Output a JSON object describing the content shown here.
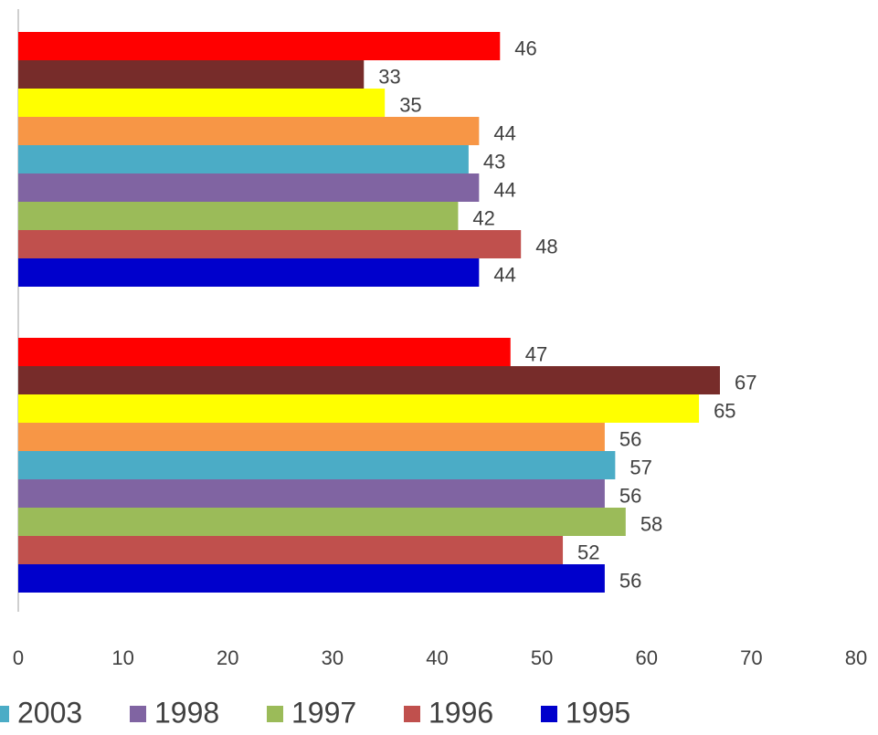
{
  "chart_data": {
    "type": "hbar",
    "categories": [
      null,
      null
    ],
    "series": [
      {
        "color": "#ff0000",
        "values": [
          46,
          47
        ]
      },
      {
        "color": "#772c2a",
        "values": [
          33,
          67
        ]
      },
      {
        "color": "#ffff00",
        "values": [
          35,
          65
        ]
      },
      {
        "color": "#f79646",
        "values": [
          44,
          56
        ]
      },
      {
        "name": "2003",
        "color": "#4bacc6",
        "values": [
          43,
          57
        ]
      },
      {
        "name": "1998",
        "color": "#8064a2",
        "values": [
          44,
          56
        ]
      },
      {
        "name": "1997",
        "color": "#9bbb59",
        "values": [
          42,
          58
        ]
      },
      {
        "name": "1996",
        "color": "#c0504d",
        "values": [
          48,
          52
        ]
      },
      {
        "name": "1995",
        "color": "#0000cc",
        "values": [
          44,
          56
        ]
      }
    ],
    "xlim": [
      0,
      80
    ],
    "xticks": [
      0,
      10,
      20,
      30,
      40,
      50,
      60,
      70,
      80
    ]
  }
}
